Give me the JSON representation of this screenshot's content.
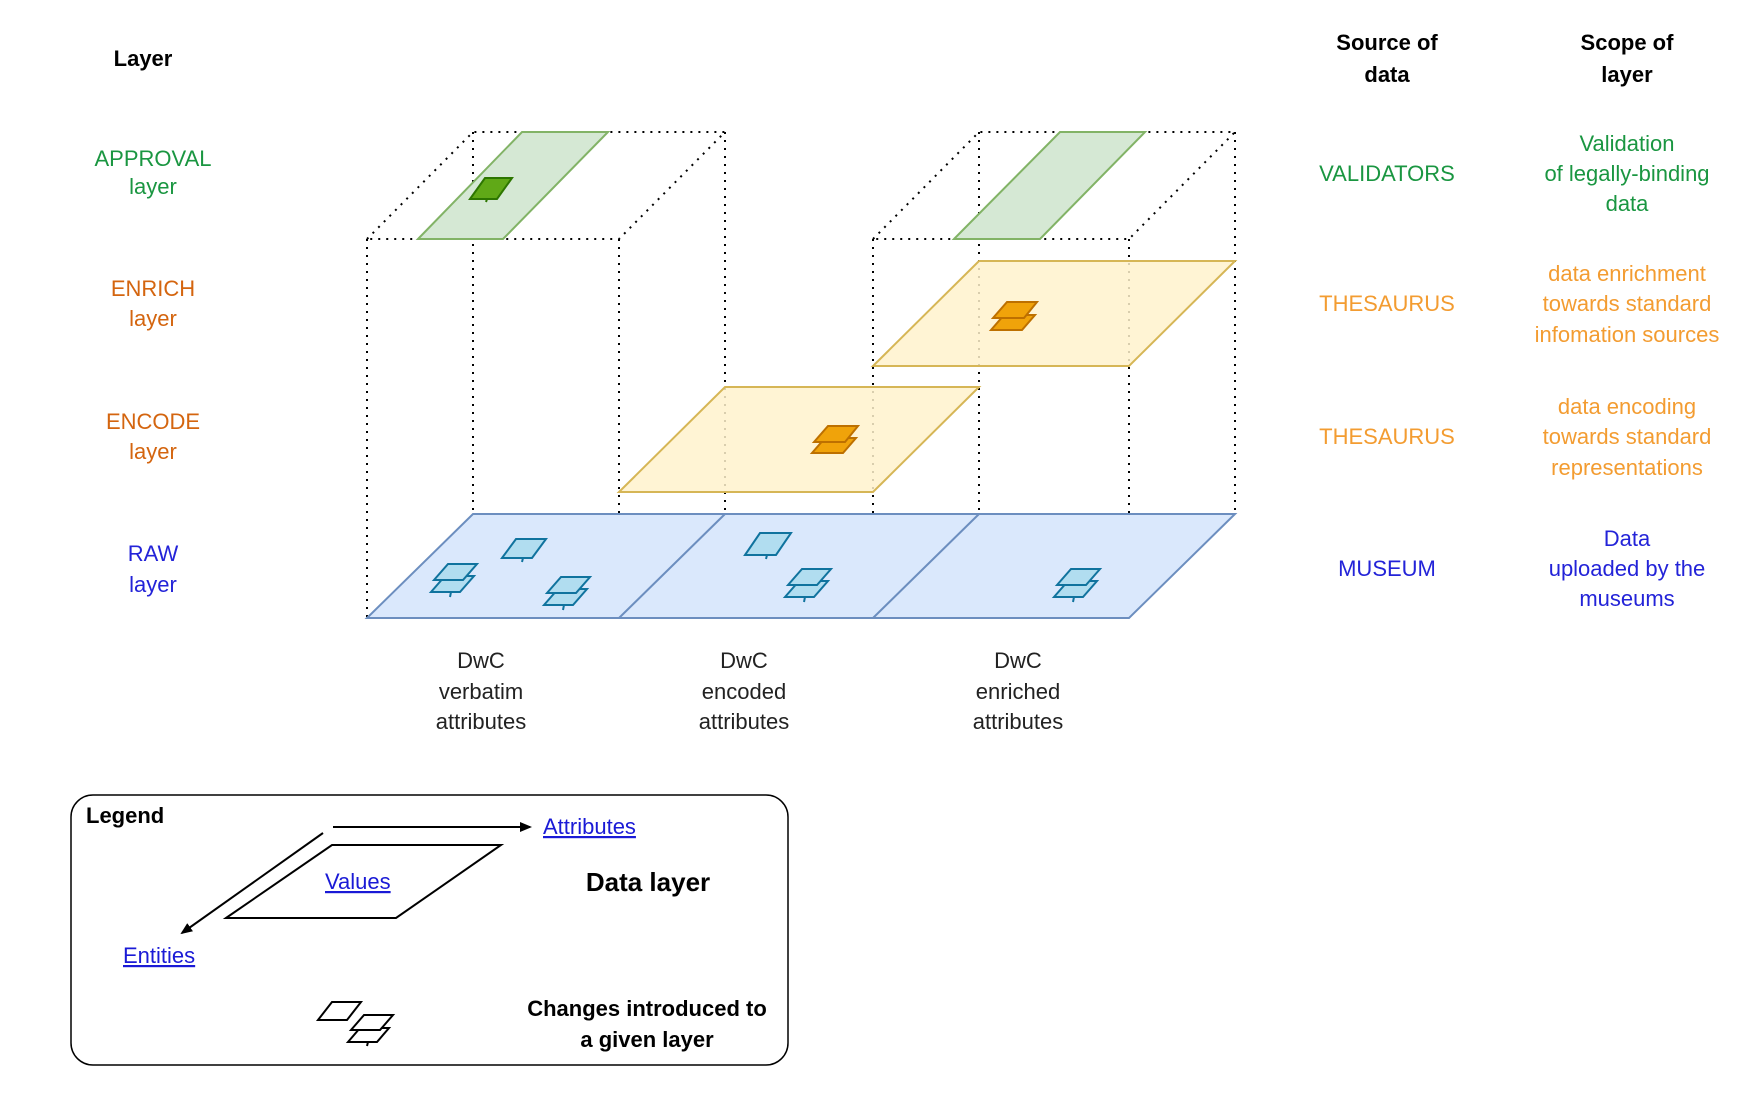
{
  "colors": {
    "approval": "#1a9641",
    "enrich_layer_label": "#d4650f",
    "source_scope_orange": "#f39c31",
    "raw": "#2323d8",
    "link": "#1a1ad6"
  },
  "headers": {
    "layer": "Layer",
    "source_line1": "Source of",
    "source_line2": "data",
    "scope_line1": "Scope of",
    "scope_line2": "layer"
  },
  "layers": {
    "approval": {
      "name": "APPROVAL",
      "suffix": "layer",
      "source": "VALIDATORS",
      "scope": [
        "Validation",
        "of legally-binding",
        "data"
      ]
    },
    "enrich": {
      "name": "ENRICH",
      "suffix": "layer",
      "source": "THESAURUS",
      "scope": [
        "data enrichment",
        "towards standard",
        "infomation sources"
      ]
    },
    "encode": {
      "name": "ENCODE",
      "suffix": "layer",
      "source": "THESAURUS",
      "scope": [
        "data encoding",
        "towards standard",
        "representations"
      ]
    },
    "raw": {
      "name": "RAW",
      "suffix": "layer",
      "source": "MUSEUM",
      "scope": [
        "Data",
        "uploaded by the",
        "museums"
      ]
    }
  },
  "columns": [
    [
      "DwC",
      "verbatim",
      "attributes"
    ],
    [
      "DwC",
      "encoded",
      "attributes"
    ],
    [
      "DwC",
      "enriched",
      "attributes"
    ]
  ],
  "legend": {
    "title": "Legend",
    "attributes": "Attributes",
    "values": "Values",
    "entities": "Entities",
    "data_layer": "Data layer",
    "changes_line1": "Changes introduced to",
    "changes_line2": "a given layer"
  }
}
